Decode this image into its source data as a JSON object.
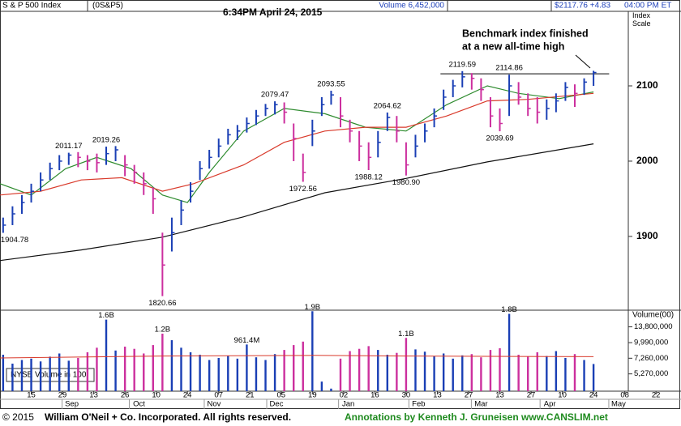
{
  "header": {
    "name": "S & P 500 Index",
    "symbol": "(0S&P5)",
    "timestamp": "6:34PM April 24, 2015",
    "volume": "Volume 6,452,000",
    "price": "$2117.76 +4.83",
    "time": "04:00 PM ET"
  },
  "chart_data": {
    "type": "ohlc",
    "axis_label": "Index Scale",
    "xlim": [
      0,
      218
    ],
    "xticks": [
      {
        "value": 10,
        "label": "15"
      },
      {
        "value": 20,
        "label": "29"
      },
      {
        "value": 30,
        "label": "13"
      },
      {
        "value": 40,
        "label": "26"
      },
      {
        "value": 50,
        "label": "10"
      },
      {
        "value": 60,
        "label": "24"
      },
      {
        "value": 70,
        "label": "07"
      },
      {
        "value": 80,
        "label": "21"
      },
      {
        "value": 90,
        "label": "05"
      },
      {
        "value": 100,
        "label": "19"
      },
      {
        "value": 110,
        "label": "02"
      },
      {
        "value": 120,
        "label": "16"
      },
      {
        "value": 130,
        "label": "30"
      },
      {
        "value": 140,
        "label": "13"
      },
      {
        "value": 150,
        "label": "27"
      },
      {
        "value": 160,
        "label": "13"
      },
      {
        "value": 170,
        "label": "27"
      },
      {
        "value": 180,
        "label": "10"
      },
      {
        "value": 190,
        "label": "24"
      },
      {
        "value": 200,
        "label": "08"
      },
      {
        "value": 210,
        "label": "22"
      }
    ],
    "month_ticks": [
      {
        "value": 23,
        "label": "Sep"
      },
      {
        "value": 44.5,
        "label": "Oct"
      },
      {
        "value": 68.5,
        "label": "Nov"
      },
      {
        "value": 88.5,
        "label": "Dec"
      },
      {
        "value": 111.5,
        "label": "Jan"
      },
      {
        "value": 134,
        "label": "Feb"
      },
      {
        "value": 154,
        "label": "Mar"
      },
      {
        "value": 176,
        "label": "Apr"
      },
      {
        "value": 198,
        "label": "May"
      }
    ],
    "ylim": [
      1802,
      2199
    ],
    "yticks": [
      1900,
      2000,
      2100
    ],
    "up_color": "#1a3fb5",
    "down_color": "#cc2f9e",
    "x": [
      1,
      4,
      7,
      10,
      13,
      16,
      19,
      22,
      25,
      28,
      31,
      34,
      37,
      40,
      43,
      46,
      49,
      52,
      55,
      58,
      61,
      64,
      67,
      70,
      73,
      76,
      79,
      82,
      85,
      88,
      91,
      94,
      97,
      100,
      103,
      106,
      109,
      112,
      115,
      118,
      121,
      124,
      127,
      130,
      133,
      136,
      139,
      142,
      145,
      148,
      151,
      154,
      157,
      160,
      163,
      166,
      169,
      172,
      175,
      178,
      181,
      184,
      187,
      190
    ],
    "high": [
      1925,
      1940,
      1955,
      1970,
      1985,
      1998,
      2008,
      2011.17,
      2012,
      2008,
      2010,
      2019.26,
      2020,
      2008,
      1995,
      1985,
      1965,
      1905,
      1925,
      1948,
      1972,
      2000,
      2015,
      2030,
      2043,
      2048,
      2058,
      2068,
      2076,
      2079.47,
      2078,
      2050,
      2010,
      2055,
      2085,
      2093.55,
      2085,
      2055,
      2040,
      2025,
      2040,
      2064.62,
      2060,
      2025,
      2035,
      2050,
      2070,
      2095,
      2108,
      2119.59,
      2117,
      2110,
      2085,
      2070,
      2114.86,
      2105,
      2090,
      2085,
      2082,
      2090,
      2105,
      2102,
      2110,
      2120
    ],
    "low": [
      1904.78,
      1915,
      1930,
      1945,
      1960,
      1975,
      1988,
      1995,
      1992,
      1988,
      1985,
      1995,
      2000,
      1980,
      1970,
      1955,
      1930,
      1820.66,
      1880,
      1915,
      1945,
      1975,
      1990,
      2005,
      2022,
      2028,
      2038,
      2048,
      2060,
      2062,
      2050,
      2000,
      1972.56,
      2020,
      2060,
      2075,
      2045,
      2025,
      2000,
      1988.12,
      2005,
      2040,
      2025,
      1980.9,
      2005,
      2025,
      2045,
      2068,
      2085,
      2098,
      2095,
      2080,
      2045,
      2039.69,
      2060,
      2075,
      2060,
      2050,
      2055,
      2065,
      2080,
      2072,
      2088,
      2100
    ],
    "close": [
      1915,
      1930,
      1945,
      1960,
      1975,
      1990,
      2000,
      2008,
      2005,
      2000,
      1998,
      2010,
      2015,
      1995,
      1985,
      1970,
      1950,
      1862,
      1905,
      1935,
      1960,
      1990,
      2005,
      2020,
      2035,
      2040,
      2050,
      2060,
      2070,
      2075,
      2065,
      2030,
      1985,
      2040,
      2075,
      2088,
      2060,
      2040,
      2020,
      2005,
      2025,
      2058,
      2040,
      1995,
      2020,
      2040,
      2060,
      2085,
      2100,
      2112,
      2110,
      2095,
      2060,
      2050,
      2100,
      2085,
      2070,
      2065,
      2070,
      2080,
      2098,
      2090,
      2105,
      2117.76
    ],
    "moving_averages": [
      {
        "color": "#2e8b2e",
        "x": [
          0,
          10,
          21,
          31,
          42,
          52,
          60,
          67,
          78,
          91,
          104,
          117,
          130,
          143,
          156,
          166,
          179,
          190
        ],
        "values": [
          1970,
          1955,
          1990,
          2005,
          1990,
          1955,
          1945,
          1985,
          2040,
          2070,
          2063,
          2045,
          2040,
          2075,
          2100,
          2090,
          2083,
          2092
        ]
      },
      {
        "color": "#d93a2b",
        "x": [
          0,
          13,
          26,
          39,
          52,
          62,
          78,
          91,
          104,
          117,
          130,
          143,
          156,
          169,
          190
        ],
        "values": [
          1955,
          1960,
          1975,
          1978,
          1960,
          1970,
          1995,
          2025,
          2040,
          2045,
          2045,
          2060,
          2080,
          2082,
          2090
        ]
      },
      {
        "color": "#111111",
        "x": [
          0,
          26,
          52,
          78,
          104,
          130,
          156,
          190
        ],
        "values": [
          1868,
          1882,
          1899,
          1926,
          1958,
          1977,
          1999,
          2023
        ]
      }
    ],
    "annotations": [
      {
        "x": 1,
        "y": 1904.78,
        "label": "1904.78",
        "position": "below"
      },
      {
        "x": 22,
        "y": 2011.17,
        "label": "2011.17",
        "position": "above"
      },
      {
        "x": 34,
        "y": 2019.26,
        "label": "2019.26",
        "position": "above"
      },
      {
        "x": 52,
        "y": 1820.66,
        "label": "1820.66",
        "position": "below"
      },
      {
        "x": 88,
        "y": 2079.47,
        "label": "2079.47",
        "position": "above"
      },
      {
        "x": 97,
        "y": 1972.56,
        "label": "1972.56",
        "position": "below"
      },
      {
        "x": 106,
        "y": 2093.55,
        "label": "2093.55",
        "position": "above"
      },
      {
        "x": 118,
        "y": 1988.12,
        "label": "1988.12",
        "position": "below"
      },
      {
        "x": 124,
        "y": 2064.62,
        "label": "2064.62",
        "position": "above"
      },
      {
        "x": 130,
        "y": 1980.9,
        "label": "1980.90",
        "position": "below"
      },
      {
        "x": 148,
        "y": 2119.59,
        "label": "2119.59",
        "position": "above"
      },
      {
        "x": 160,
        "y": 2039.69,
        "label": "2039.69",
        "position": "below"
      },
      {
        "x": 163,
        "y": 2114.86,
        "label": "2114.86",
        "position": "above"
      }
    ],
    "high_line": {
      "y": 2116,
      "x": [
        141,
        195
      ]
    },
    "note": [
      "Benchmark index finished",
      "at a new all-time high"
    ],
    "volume": {
      "axis_label": "Volume(00)",
      "box_label": "NYSE Volume in 100",
      "log": true,
      "ylim": [
        3700000,
        19400000
      ],
      "yticks": [
        {
          "value": 13800000,
          "label": "13,800,000"
        },
        {
          "value": 9990000,
          "label": "9,990,000"
        },
        {
          "value": 7260000,
          "label": "7,260,000"
        },
        {
          "value": 5270000,
          "label": "5,270,000"
        }
      ],
      "values": [
        7800000,
        6500000,
        7000000,
        7200000,
        6800000,
        7500000,
        8000000,
        6900000,
        7300000,
        8200000,
        9000000,
        16000000,
        8500000,
        9200000,
        8800000,
        8000000,
        9500000,
        12000000,
        10500000,
        9000000,
        8200000,
        7800000,
        7000000,
        7300000,
        7600000,
        7200000,
        9614000,
        7400000,
        7000000,
        7900000,
        8600000,
        9500000,
        10200000,
        19000000,
        4500000,
        3900000,
        7200000,
        8400000,
        8800000,
        9300000,
        8600000,
        7800000,
        8100000,
        11000000,
        8700000,
        8300000,
        7600000,
        8000000,
        7200000,
        7700000,
        7900000,
        7400000,
        8600000,
        8900000,
        18000000,
        7800000,
        7500000,
        8200000,
        7600000,
        8400000,
        7300000,
        7900000,
        7000000,
        6452000
      ],
      "value_labels": [
        null,
        null,
        null,
        null,
        null,
        null,
        null,
        null,
        null,
        null,
        null,
        "1.6B",
        null,
        null,
        null,
        null,
        null,
        "1.2B",
        null,
        null,
        null,
        null,
        null,
        null,
        null,
        null,
        "961.4M",
        null,
        null,
        null,
        null,
        null,
        null,
        "1.9B",
        null,
        null,
        null,
        null,
        null,
        null,
        null,
        null,
        null,
        "1.1B",
        null,
        null,
        null,
        null,
        null,
        null,
        null,
        null,
        null,
        null,
        "1.8B",
        null,
        null,
        null,
        null,
        null,
        null,
        null,
        null,
        null
      ],
      "average": {
        "color": "#d93a2b",
        "x": [
          0,
          52,
          100,
          130,
          190
        ],
        "values": [
          7300000,
          7600000,
          7700000,
          7600000,
          7500000
        ]
      }
    }
  },
  "footer": {
    "copyright": "© 2015",
    "company": "William O'Neil + Co. Incorporated. All rights reserved.",
    "credit": "Annotations by Kenneth J. Gruneisen www.CANSLIM.net"
  }
}
